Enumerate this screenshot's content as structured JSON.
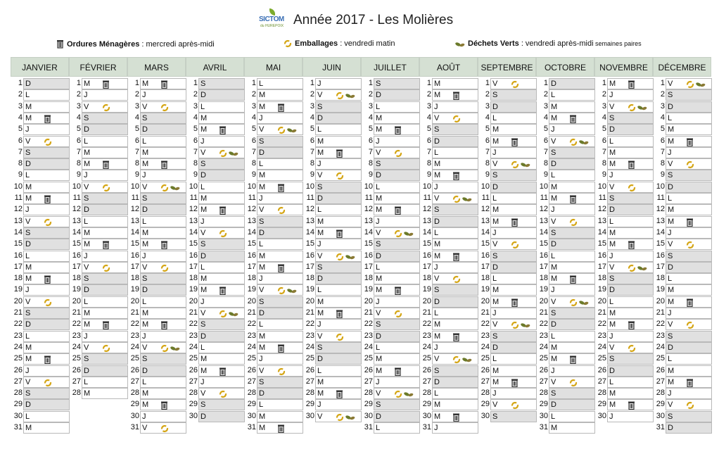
{
  "title": "Année 2017 - Les Molières",
  "logo": {
    "line1": "SICTOM",
    "line2": "du HUREPOIX"
  },
  "legend": {
    "om": {
      "bold": "Ordures Ménagères",
      "text": " : mercredi après-midi",
      "icon": "trash-bin-icon"
    },
    "emb": {
      "bold": "Emballages",
      "text": " : vendredi matin",
      "icon": "recycle-icon"
    },
    "dv": {
      "bold": "Déchets Verts",
      "text": " : vendredi après-midi",
      "small": " semaines paires",
      "icon": "leaves-icon"
    }
  },
  "colors": {
    "header_bg": "#d5e0d3",
    "weekend_bg": "#e0e0e0",
    "recycle": "#d4a514",
    "leaf": "#6b7a2a"
  },
  "months": [
    {
      "name": "JANVIER",
      "start": 0,
      "days": 31,
      "om": [
        4,
        11,
        18,
        25
      ],
      "emb": [
        6,
        13,
        20,
        27
      ],
      "dv": []
    },
    {
      "name": "FÉVRIER",
      "start": 3,
      "days": 28,
      "om": [
        1,
        8,
        15,
        22
      ],
      "emb": [
        3,
        10,
        17,
        24
      ],
      "dv": []
    },
    {
      "name": "MARS",
      "start": 3,
      "days": 31,
      "om": [
        1,
        8,
        15,
        22,
        29
      ],
      "emb": [
        3,
        17,
        31
      ],
      "embdv": [
        10,
        24
      ],
      "dv": []
    },
    {
      "name": "AVRIL",
      "start": 6,
      "days": 30,
      "om": [
        5,
        12,
        19,
        26
      ],
      "emb": [
        14,
        28
      ],
      "embdv": [
        7,
        21
      ],
      "dv": []
    },
    {
      "name": "MAI",
      "start": 1,
      "days": 31,
      "om": [
        3,
        10,
        17,
        24,
        31
      ],
      "emb": [
        12,
        26
      ],
      "embdv": [
        5,
        19
      ],
      "dv": []
    },
    {
      "name": "JUIN",
      "start": 4,
      "days": 30,
      "om": [
        7,
        14,
        21,
        28
      ],
      "emb": [
        9,
        23
      ],
      "embdv": [
        2,
        16,
        30
      ],
      "dv": []
    },
    {
      "name": "JUILLET",
      "start": 6,
      "days": 31,
      "om": [
        5,
        12,
        19,
        26
      ],
      "emb": [
        7,
        21
      ],
      "embdv": [
        14,
        28
      ],
      "dv": []
    },
    {
      "name": "AOÛT",
      "start": 2,
      "days": 31,
      "om": [
        2,
        9,
        16,
        23,
        30
      ],
      "emb": [
        4,
        18
      ],
      "embdv": [
        11,
        25
      ],
      "dv": []
    },
    {
      "name": "SEPTEMBRE",
      "start": 5,
      "days": 30,
      "om": [
        6,
        13,
        20,
        27
      ],
      "emb": [
        1,
        15,
        29
      ],
      "embdv": [
        8,
        22
      ],
      "dv": []
    },
    {
      "name": "OCTOBRE",
      "start": 0,
      "days": 31,
      "om": [
        4,
        11,
        18,
        25
      ],
      "emb": [
        13,
        27
      ],
      "embdv": [
        6,
        20
      ],
      "dv": []
    },
    {
      "name": "NOVEMBRE",
      "start": 3,
      "days": 30,
      "om": [
        1,
        8,
        15,
        22,
        29
      ],
      "emb": [
        10,
        24
      ],
      "embdv": [
        3,
        17
      ],
      "dv": []
    },
    {
      "name": "DÉCEMBRE",
      "start": 5,
      "days": 31,
      "om": [
        6,
        13,
        20,
        27
      ],
      "emb": [
        8,
        15,
        22,
        29
      ],
      "embdv": [
        1
      ],
      "dv": []
    }
  ],
  "weekday_letters": [
    "D",
    "L",
    "M",
    "M",
    "J",
    "V",
    "S"
  ]
}
